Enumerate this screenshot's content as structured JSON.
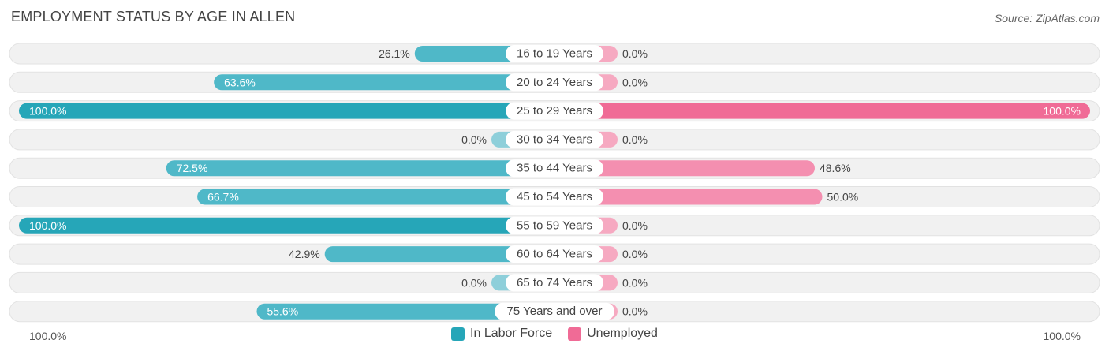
{
  "title": "EMPLOYMENT STATUS BY AGE IN ALLEN",
  "source": "Source: ZipAtlas.com",
  "colors": {
    "labor_force_dark": "#26a6b8",
    "labor_force_light": "#8ecfda",
    "unemployed_dark": "#f06b96",
    "unemployed_light": "#f6a9c1",
    "row_bg": "#f1f1f1"
  },
  "chart_data": {
    "type": "bar",
    "orientation": "horizontal-diverging",
    "categories": [
      "16 to 19 Years",
      "20 to 24 Years",
      "25 to 29 Years",
      "30 to 34 Years",
      "35 to 44 Years",
      "45 to 54 Years",
      "55 to 59 Years",
      "60 to 64 Years",
      "65 to 74 Years",
      "75 Years and over"
    ],
    "series": [
      {
        "name": "In Labor Force",
        "values": [
          26.1,
          63.6,
          100.0,
          0.0,
          72.5,
          66.7,
          100.0,
          42.9,
          0.0,
          55.6
        ]
      },
      {
        "name": "Unemployed",
        "values": [
          0.0,
          0.0,
          100.0,
          0.0,
          48.6,
          50.0,
          0.0,
          0.0,
          0.0,
          0.0
        ]
      }
    ],
    "value_labels_left": [
      "26.1%",
      "63.6%",
      "100.0%",
      "0.0%",
      "72.5%",
      "66.7%",
      "100.0%",
      "42.9%",
      "0.0%",
      "55.6%"
    ],
    "value_labels_right": [
      "0.0%",
      "0.0%",
      "100.0%",
      "0.0%",
      "48.6%",
      "50.0%",
      "0.0%",
      "0.0%",
      "0.0%",
      "0.0%"
    ],
    "xlim": [
      0,
      100
    ],
    "axis_left_label": "100.0%",
    "axis_right_label": "100.0%",
    "legend_position": "bottom-center"
  }
}
